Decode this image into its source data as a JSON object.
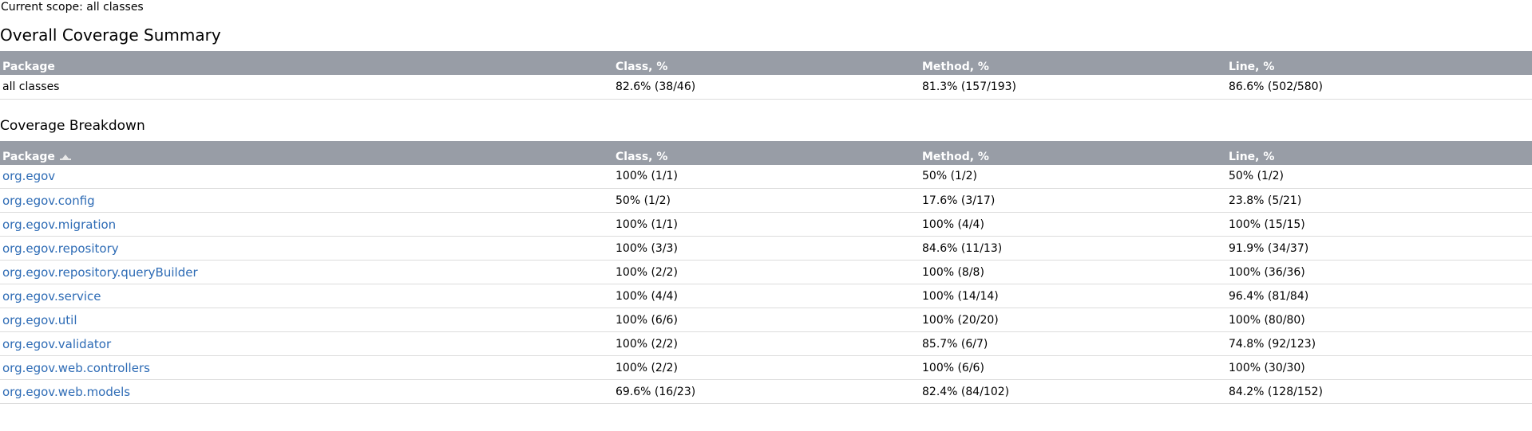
{
  "scope_text": "Current scope: all classes",
  "summary": {
    "title": "Overall Coverage Summary",
    "headers": [
      "Package",
      "Class, %",
      "Method, %",
      "Line, %"
    ],
    "row": {
      "package": "all classes",
      "class": "82.6% (38/46)",
      "method": "81.3% (157/193)",
      "line": "86.6% (502/580)"
    }
  },
  "breakdown": {
    "title": "Coverage Breakdown",
    "headers": [
      "Package",
      "Class, %",
      "Method, %",
      "Line, %"
    ],
    "sort_icon": "sort-ascending-icon",
    "rows": [
      {
        "package": "org.egov",
        "class": "100% (1/1)",
        "method": "50% (1/2)",
        "line": "50% (1/2)"
      },
      {
        "package": "org.egov.config",
        "class": "50% (1/2)",
        "method": "17.6% (3/17)",
        "line": "23.8% (5/21)"
      },
      {
        "package": "org.egov.migration",
        "class": "100% (1/1)",
        "method": "100% (4/4)",
        "line": "100% (15/15)"
      },
      {
        "package": "org.egov.repository",
        "class": "100% (3/3)",
        "method": "84.6% (11/13)",
        "line": "91.9% (34/37)"
      },
      {
        "package": "org.egov.repository.queryBuilder",
        "class": "100% (2/2)",
        "method": "100% (8/8)",
        "line": "100% (36/36)"
      },
      {
        "package": "org.egov.service",
        "class": "100% (4/4)",
        "method": "100% (14/14)",
        "line": "96.4% (81/84)"
      },
      {
        "package": "org.egov.util",
        "class": "100% (6/6)",
        "method": "100% (20/20)",
        "line": "100% (80/80)"
      },
      {
        "package": "org.egov.validator",
        "class": "100% (2/2)",
        "method": "85.7% (6/7)",
        "line": "74.8% (92/123)"
      },
      {
        "package": "org.egov.web.controllers",
        "class": "100% (2/2)",
        "method": "100% (6/6)",
        "line": "100% (30/30)"
      },
      {
        "package": "org.egov.web.models",
        "class": "69.6% (16/23)",
        "method": "82.4% (84/102)",
        "line": "84.2% (128/152)"
      }
    ]
  },
  "colors": {
    "header_bg": "#989da6",
    "link": "#2d6bb5",
    "row_border": "#dcdcdc"
  }
}
